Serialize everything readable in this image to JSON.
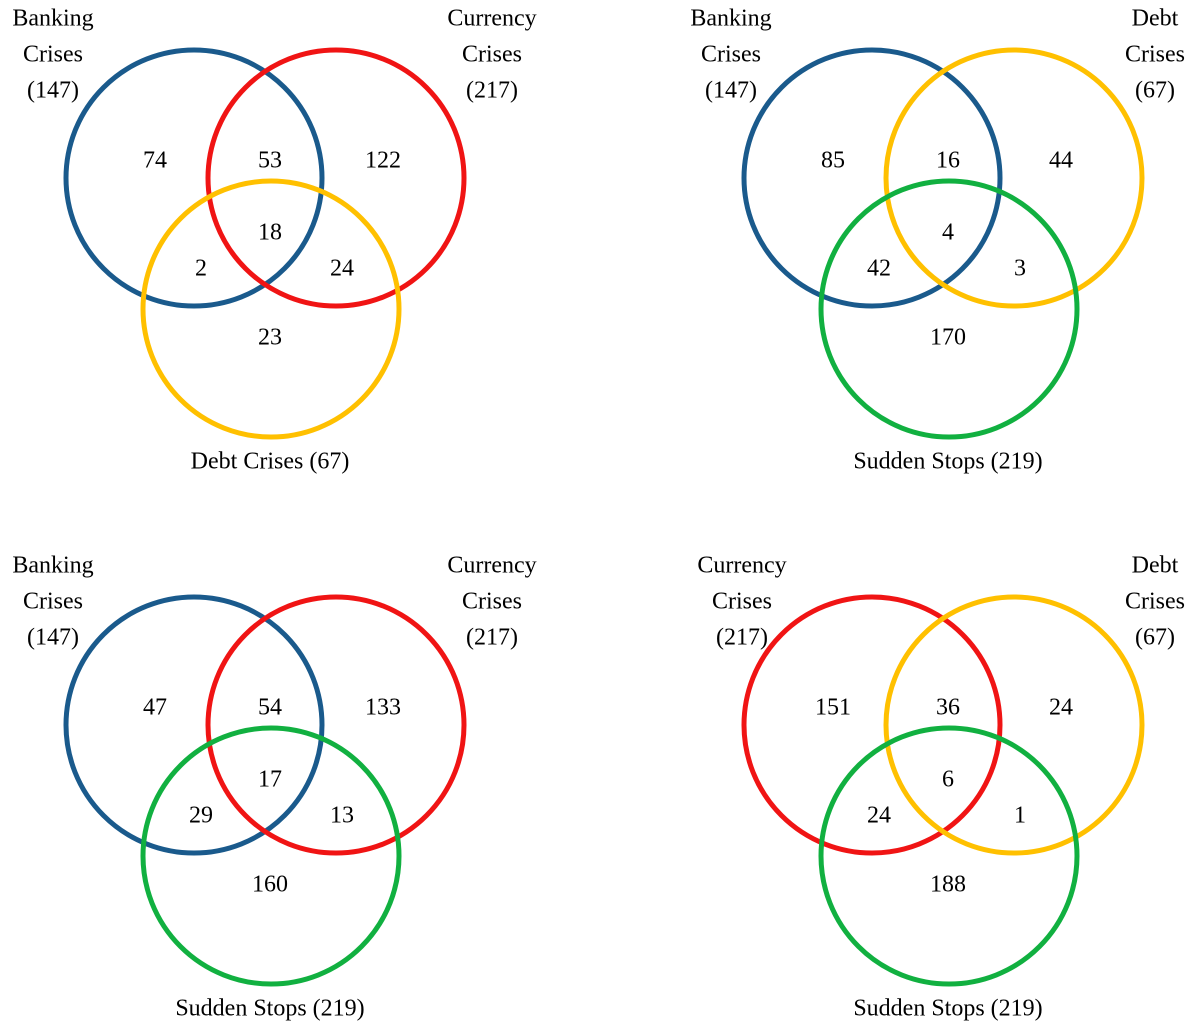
{
  "colors": {
    "banking": "#1a5a8c",
    "currency": "#f01414",
    "debt": "#ffc000",
    "sudden": "#11b040"
  },
  "diagrams": [
    {
      "id": "banking-currency-debt",
      "sets": {
        "a": {
          "key": "banking",
          "name_lines": [
            "Banking",
            "Crises",
            "(147)"
          ]
        },
        "b": {
          "key": "currency",
          "name_lines": [
            "Currency",
            "Crises",
            "(217)"
          ]
        },
        "c": {
          "key": "debt",
          "name": "Debt Crises (67)"
        }
      },
      "regions": {
        "a_only": "74",
        "ab": "53",
        "b_only": "122",
        "abc": "18",
        "ac": "2",
        "bc": "24",
        "c_only": "23"
      }
    },
    {
      "id": "banking-debt-sudden",
      "sets": {
        "a": {
          "key": "banking",
          "name_lines": [
            "Banking",
            "Crises",
            "(147)"
          ]
        },
        "b": {
          "key": "debt",
          "name_lines": [
            "Debt",
            "Crises",
            "(67)"
          ]
        },
        "c": {
          "key": "sudden",
          "name": "Sudden Stops (219)"
        }
      },
      "regions": {
        "a_only": "85",
        "ab": "16",
        "b_only": "44",
        "abc": "4",
        "ac": "42",
        "bc": "3",
        "c_only": "170"
      }
    },
    {
      "id": "banking-currency-sudden",
      "sets": {
        "a": {
          "key": "banking",
          "name_lines": [
            "Banking",
            "Crises",
            "(147)"
          ]
        },
        "b": {
          "key": "currency",
          "name_lines": [
            "Currency",
            "Crises",
            "(217)"
          ]
        },
        "c": {
          "key": "sudden",
          "name": "Sudden Stops (219)"
        }
      },
      "regions": {
        "a_only": "47",
        "ab": "54",
        "b_only": "133",
        "abc": "17",
        "ac": "29",
        "bc": "13",
        "c_only": "160"
      }
    },
    {
      "id": "currency-debt-sudden",
      "sets": {
        "a": {
          "key": "currency",
          "name_lines": [
            "Currency",
            "Crises",
            "(217)"
          ]
        },
        "b": {
          "key": "debt",
          "name_lines": [
            "Debt",
            "Crises",
            "(67)"
          ]
        },
        "c": {
          "key": "sudden",
          "name": "Sudden Stops (219)"
        }
      },
      "regions": {
        "a_only": "151",
        "ab": "36",
        "b_only": "24",
        "abc": "6",
        "ac": "24",
        "bc": "1",
        "c_only": "188"
      }
    }
  ]
}
